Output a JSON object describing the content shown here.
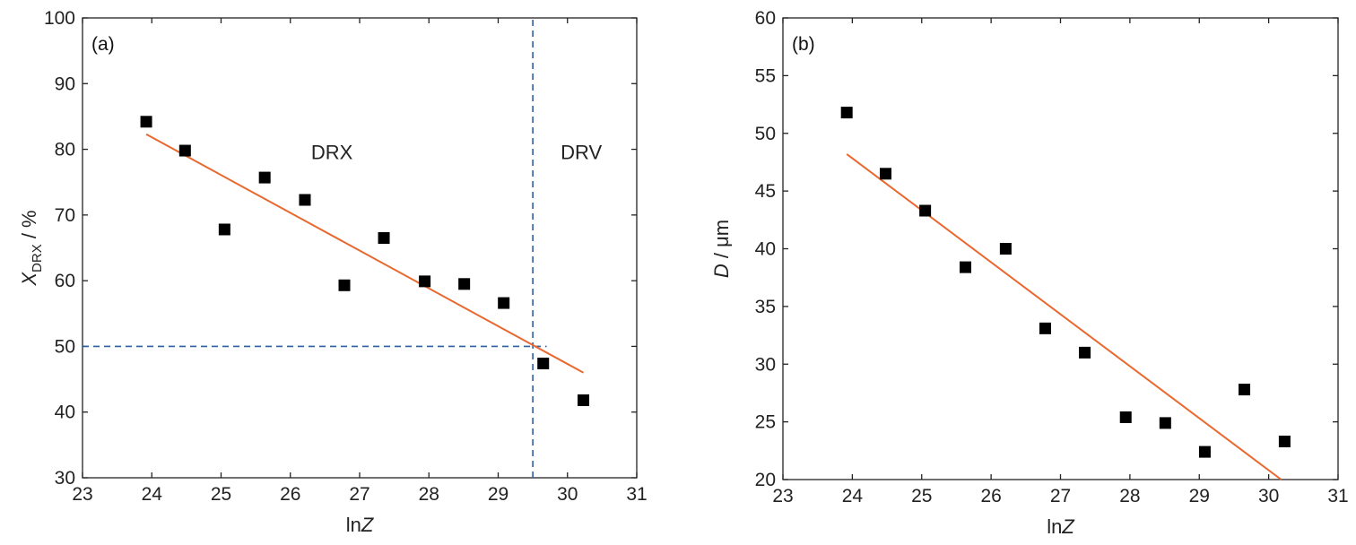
{
  "chart_data": [
    {
      "panel_label": "(a)",
      "type": "scatter",
      "xlabel": "lnZ",
      "xlabel_main": "ln",
      "xlabel_italic": "Z",
      "ylabel": "X_DRX / %",
      "ylabel_main": "X",
      "ylabel_sub": "DRX",
      "ylabel_unit": " / %",
      "xlim": [
        23,
        31
      ],
      "ylim": [
        30,
        100
      ],
      "x_ticks": [
        23,
        24,
        25,
        26,
        27,
        28,
        29,
        30,
        31
      ],
      "y_ticks": [
        30,
        40,
        50,
        60,
        70,
        80,
        90,
        100
      ],
      "grid": false,
      "points": [
        {
          "x": 23.92,
          "y": 84.2
        },
        {
          "x": 24.48,
          "y": 79.8
        },
        {
          "x": 25.05,
          "y": 67.8
        },
        {
          "x": 25.63,
          "y": 75.7
        },
        {
          "x": 26.21,
          "y": 72.3
        },
        {
          "x": 26.78,
          "y": 59.3
        },
        {
          "x": 27.35,
          "y": 66.5
        },
        {
          "x": 27.94,
          "y": 59.9
        },
        {
          "x": 28.51,
          "y": 59.5
        },
        {
          "x": 29.08,
          "y": 56.6
        },
        {
          "x": 29.65,
          "y": 47.4
        },
        {
          "x": 30.23,
          "y": 41.8
        }
      ],
      "fit_line": {
        "x": [
          23.92,
          30.23
        ],
        "y": [
          82.3,
          46.0
        ],
        "color": "#e8682f"
      },
      "reference_lines": [
        {
          "orientation": "vertical",
          "value": 29.5,
          "y_range": [
            30,
            100
          ],
          "color": "#2f5f9e"
        },
        {
          "orientation": "horizontal",
          "value": 50,
          "x_range": [
            23,
            29.7
          ],
          "color": "#2f5f9e"
        }
      ],
      "regions": [
        {
          "label": "DRX",
          "x": 26.6,
          "y": 78.5
        },
        {
          "label": "DRV",
          "x": 30.2,
          "y": 78.5
        }
      ]
    },
    {
      "panel_label": "(b)",
      "type": "scatter",
      "xlabel": "lnZ",
      "xlabel_main": "ln",
      "xlabel_italic": "Z",
      "ylabel": "D / μm",
      "ylabel_italic": "D",
      "ylabel_unit": " / μm",
      "xlim": [
        23,
        31
      ],
      "ylim": [
        20,
        60
      ],
      "x_ticks": [
        23,
        24,
        25,
        26,
        27,
        28,
        29,
        30,
        31
      ],
      "y_ticks": [
        20,
        25,
        30,
        35,
        40,
        45,
        50,
        55,
        60
      ],
      "grid": false,
      "points": [
        {
          "x": 23.92,
          "y": 51.8
        },
        {
          "x": 24.48,
          "y": 46.5
        },
        {
          "x": 25.05,
          "y": 43.3
        },
        {
          "x": 25.63,
          "y": 38.4
        },
        {
          "x": 26.21,
          "y": 40.0
        },
        {
          "x": 26.78,
          "y": 33.1
        },
        {
          "x": 27.35,
          "y": 31.0
        },
        {
          "x": 27.94,
          "y": 25.4
        },
        {
          "x": 28.51,
          "y": 24.9
        },
        {
          "x": 29.08,
          "y": 22.4
        },
        {
          "x": 29.65,
          "y": 27.8
        },
        {
          "x": 30.23,
          "y": 23.3
        }
      ],
      "fit_line": {
        "x": [
          23.92,
          30.18
        ],
        "y": [
          48.2,
          20.0
        ],
        "color": "#e8682f"
      }
    }
  ]
}
